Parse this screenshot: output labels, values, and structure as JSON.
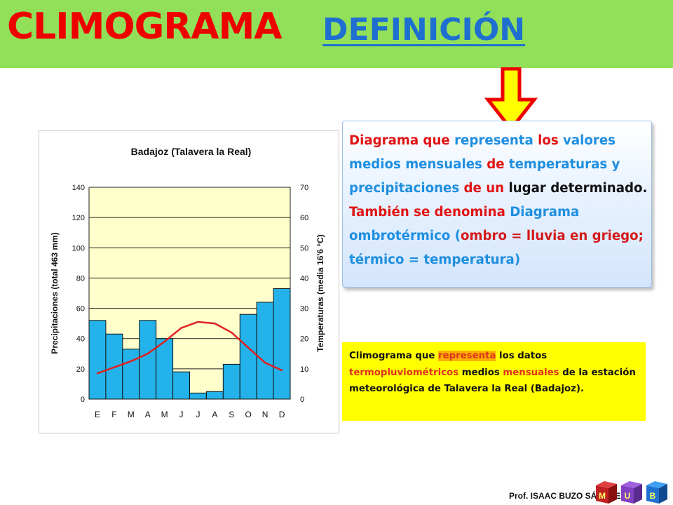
{
  "header": {
    "title": "CLIMOGRAMA",
    "link": "DEFINICIÓN"
  },
  "definition": [
    {
      "t": "Diagrama que ",
      "c": "red"
    },
    {
      "t": "representa ",
      "c": "blue"
    },
    {
      "t": "los ",
      "c": "red"
    },
    {
      "t": "valores medios mensuales ",
      "c": "blue"
    },
    {
      "t": "de ",
      "c": "red"
    },
    {
      "t": "temperaturas y precipitaciones ",
      "c": "blue"
    },
    {
      "t": "de un ",
      "c": "red"
    },
    {
      "t": "lugar determinado. ",
      "c": "black"
    },
    {
      "t": "También se denomina ",
      "c": "red"
    },
    {
      "t": "Diagrama ombrotérmico (",
      "c": "blue"
    },
    {
      "t": "ombro = lluvia en griego; ",
      "c": "red2"
    },
    {
      "t": "térmico = temperatura)",
      "c": "blue"
    }
  ],
  "climogram_note": [
    {
      "t": "Climograma que ",
      "s": "plain"
    },
    {
      "t": "representa",
      "s": "hl"
    },
    {
      "t": " los datos ",
      "s": "plain"
    },
    {
      "t": "termopluviométricos",
      "s": "red"
    },
    {
      "t": " medios ",
      "s": "plain"
    },
    {
      "t": "mensuales",
      "s": "red"
    },
    {
      "t": " de la estación meteorológica de Talavera la Real (Badajoz).",
      "s": "plain"
    }
  ],
  "footer": {
    "author": "Prof. ISAAC BUZO SÁNCHEZ"
  },
  "logo_letters": [
    "M",
    "U",
    "B"
  ],
  "chart_data": {
    "type": "bar",
    "title": "Badajoz (Talavera la Real)",
    "categories": [
      "E",
      "F",
      "M",
      "A",
      "M",
      "J",
      "J",
      "A",
      "S",
      "O",
      "N",
      "D"
    ],
    "ylabel_left": "Precipitaciones (total 463 mm)",
    "ylabel_right": "Temperaturas (media 16'6 °C)",
    "ylim_left": [
      0,
      140
    ],
    "ylim_right": [
      0,
      70
    ],
    "yticks_left": [
      "0",
      "20",
      "40",
      "60",
      "80",
      "100",
      "120",
      "140"
    ],
    "yticks_right": [
      "0",
      "10",
      "20",
      "30",
      "40",
      "50",
      "60",
      "70"
    ],
    "grid": true,
    "series": [
      {
        "type": "bar",
        "axis": "left",
        "color": "#23b3ea",
        "values": [
          52,
          43,
          33,
          52,
          40,
          18,
          4,
          5,
          23,
          56,
          64,
          73
        ]
      },
      {
        "type": "line",
        "axis": "right",
        "color": "#e02020",
        "values": [
          8.5,
          10.5,
          12.5,
          15,
          19,
          23.5,
          25.5,
          25,
          22,
          17,
          12,
          9.5
        ]
      }
    ],
    "colors": {
      "plot_bg": "#ffffcc",
      "bar": "#23b3ea",
      "line": "#e02020"
    }
  }
}
